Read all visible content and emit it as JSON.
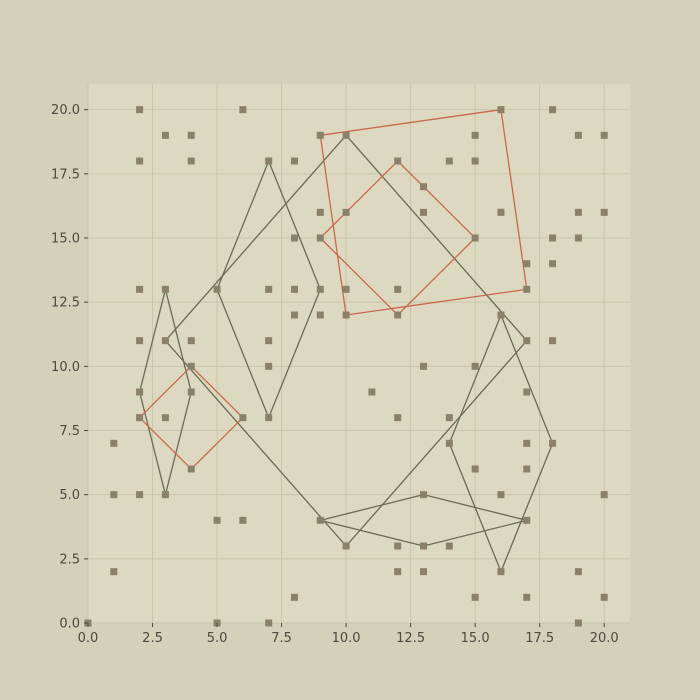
{
  "chart_data": {
    "type": "scatter",
    "title": "",
    "xlabel": "",
    "ylabel": "",
    "xlim": [
      0,
      21
    ],
    "ylim": [
      0,
      21
    ],
    "grid": true,
    "x_ticks": [
      "0.0",
      "2.5",
      "5.0",
      "7.5",
      "10.0",
      "12.5",
      "15.0",
      "17.5",
      "20.0"
    ],
    "y_ticks": [
      "0.0",
      "2.5",
      "5.0",
      "7.5",
      "10.0",
      "12.5",
      "15.0",
      "17.5",
      "20.0"
    ],
    "colors": {
      "figure_bg": "#d4d0b9",
      "plot_bg": "#ddd9c0",
      "grid": "#c9c4ab",
      "points": "#8b8068",
      "dark_lines": "#6a6a55",
      "orange_lines": "#c8694d",
      "tick_text": "#4a4a40"
    },
    "points": [
      [
        0,
        0
      ],
      [
        1,
        7
      ],
      [
        1,
        5
      ],
      [
        1,
        2
      ],
      [
        2,
        20
      ],
      [
        2,
        18
      ],
      [
        2,
        13
      ],
      [
        2,
        11
      ],
      [
        2,
        9
      ],
      [
        2,
        8
      ],
      [
        2,
        5
      ],
      [
        3,
        19
      ],
      [
        3,
        13
      ],
      [
        3,
        11
      ],
      [
        3,
        8
      ],
      [
        3,
        5
      ],
      [
        4,
        19
      ],
      [
        4,
        18
      ],
      [
        4,
        11
      ],
      [
        4,
        10
      ],
      [
        4,
        9
      ],
      [
        4,
        6
      ],
      [
        5,
        13
      ],
      [
        5,
        4
      ],
      [
        5,
        0
      ],
      [
        6,
        20
      ],
      [
        6,
        8
      ],
      [
        6,
        4
      ],
      [
        7,
        18
      ],
      [
        7,
        13
      ],
      [
        7,
        11
      ],
      [
        7,
        10
      ],
      [
        7,
        8
      ],
      [
        7,
        0
      ],
      [
        8,
        18
      ],
      [
        8,
        15
      ],
      [
        8,
        13
      ],
      [
        8,
        12
      ],
      [
        8,
        1
      ],
      [
        9,
        19
      ],
      [
        9,
        16
      ],
      [
        9,
        15
      ],
      [
        9,
        13
      ],
      [
        9,
        12
      ],
      [
        9,
        4
      ],
      [
        10,
        19
      ],
      [
        10,
        16
      ],
      [
        10,
        13
      ],
      [
        10,
        12
      ],
      [
        10,
        3
      ],
      [
        11,
        9
      ],
      [
        12,
        18
      ],
      [
        12,
        13
      ],
      [
        12,
        12
      ],
      [
        12,
        8
      ],
      [
        12,
        3
      ],
      [
        12,
        2
      ],
      [
        13,
        17
      ],
      [
        13,
        16
      ],
      [
        13,
        10
      ],
      [
        13,
        5
      ],
      [
        13,
        3
      ],
      [
        13,
        2
      ],
      [
        14,
        18
      ],
      [
        14,
        8
      ],
      [
        14,
        7
      ],
      [
        14,
        3
      ],
      [
        15,
        19
      ],
      [
        15,
        18
      ],
      [
        15,
        15
      ],
      [
        15,
        10
      ],
      [
        15,
        6
      ],
      [
        15,
        1
      ],
      [
        16,
        20
      ],
      [
        16,
        16
      ],
      [
        16,
        12
      ],
      [
        16,
        5
      ],
      [
        16,
        2
      ],
      [
        17,
        14
      ],
      [
        17,
        13
      ],
      [
        17,
        11
      ],
      [
        17,
        9
      ],
      [
        17,
        7
      ],
      [
        17,
        6
      ],
      [
        17,
        4
      ],
      [
        17,
        1
      ],
      [
        18,
        20
      ],
      [
        18,
        15
      ],
      [
        18,
        14
      ],
      [
        18,
        11
      ],
      [
        18,
        7
      ],
      [
        19,
        19
      ],
      [
        19,
        16
      ],
      [
        19,
        15
      ],
      [
        19,
        2
      ],
      [
        19,
        0
      ],
      [
        20,
        19
      ],
      [
        20,
        16
      ],
      [
        20,
        5
      ],
      [
        20,
        1
      ]
    ],
    "shapes": [
      {
        "color": "dark",
        "points": [
          [
            7,
            18
          ],
          [
            9,
            13
          ],
          [
            7,
            8
          ],
          [
            5,
            13
          ],
          [
            7,
            18
          ]
        ]
      },
      {
        "color": "dark",
        "points": [
          [
            3,
            13
          ],
          [
            4,
            9
          ],
          [
            3,
            5
          ],
          [
            2,
            9
          ],
          [
            3,
            13
          ]
        ]
      },
      {
        "color": "dark",
        "points": [
          [
            10,
            19
          ],
          [
            17,
            11
          ],
          [
            10,
            3
          ],
          [
            3,
            11
          ],
          [
            10,
            19
          ]
        ]
      },
      {
        "color": "dark",
        "points": [
          [
            16,
            12
          ],
          [
            18,
            7
          ],
          [
            16,
            2
          ],
          [
            14,
            7
          ],
          [
            16,
            12
          ]
        ]
      },
      {
        "color": "dark",
        "points": [
          [
            13,
            5
          ],
          [
            17,
            4
          ],
          [
            13,
            3
          ],
          [
            9,
            4
          ],
          [
            13,
            5
          ]
        ]
      },
      {
        "color": "orange",
        "points": [
          [
            9,
            19
          ],
          [
            16,
            20
          ],
          [
            17,
            13
          ],
          [
            10,
            12
          ],
          [
            9,
            19
          ]
        ]
      },
      {
        "color": "orange",
        "points": [
          [
            12,
            18
          ],
          [
            15,
            15
          ],
          [
            12,
            12
          ],
          [
            9,
            15
          ],
          [
            12,
            18
          ]
        ]
      },
      {
        "color": "orange",
        "points": [
          [
            4,
            10
          ],
          [
            6,
            8
          ],
          [
            4,
            6
          ],
          [
            2,
            8
          ],
          [
            4,
            10
          ]
        ]
      }
    ]
  }
}
